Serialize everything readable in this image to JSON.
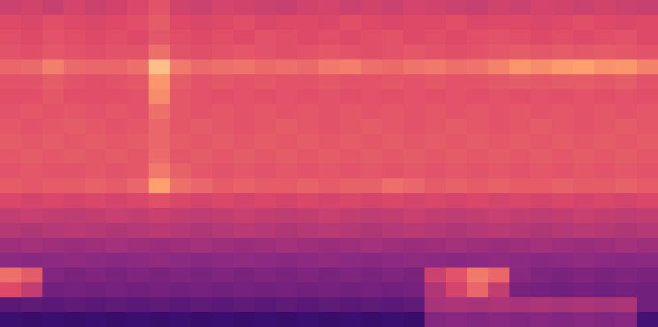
{
  "chart_data": {
    "type": "heatmap",
    "tick_labels": false,
    "color_range": [
      10,
      100
    ],
    "cells": [
      [
        60,
        61,
        59,
        62,
        60,
        61,
        63,
        66,
        61,
        60,
        62,
        61,
        60,
        59,
        61,
        62,
        60,
        61,
        60,
        62,
        61,
        60,
        59,
        61,
        60,
        62,
        61,
        60,
        61,
        60,
        59
      ],
      [
        64,
        63,
        65,
        64,
        63,
        64,
        65,
        68,
        64,
        63,
        64,
        65,
        63,
        64,
        64,
        63,
        65,
        64,
        63,
        64,
        64,
        65,
        63,
        64,
        64,
        63,
        64,
        65,
        64,
        63,
        64
      ],
      [
        65,
        64,
        66,
        65,
        64,
        65,
        64,
        67,
        65,
        64,
        65,
        64,
        66,
        65,
        64,
        65,
        64,
        65,
        66,
        64,
        65,
        64,
        65,
        66,
        65,
        64,
        65,
        64,
        65,
        66,
        64
      ],
      [
        66,
        65,
        67,
        66,
        65,
        66,
        66,
        72,
        66,
        65,
        66,
        67,
        66,
        65,
        66,
        67,
        66,
        65,
        66,
        67,
        66,
        65,
        66,
        67,
        68,
        67,
        68,
        67,
        68,
        67,
        66
      ],
      [
        70,
        71,
        75,
        71,
        70,
        70,
        72,
        88,
        74,
        71,
        72,
        73,
        71,
        72,
        71,
        74,
        75,
        72,
        71,
        73,
        74,
        72,
        73,
        76,
        80,
        78,
        81,
        82,
        79,
        80,
        76
      ],
      [
        66,
        66,
        68,
        66,
        65,
        66,
        67,
        80,
        68,
        66,
        67,
        66,
        67,
        66,
        66,
        67,
        66,
        66,
        67,
        66,
        67,
        66,
        66,
        67,
        68,
        67,
        68,
        68,
        67,
        68,
        66
      ],
      [
        65,
        65,
        67,
        65,
        65,
        65,
        66,
        78,
        67,
        66,
        65,
        66,
        65,
        66,
        65,
        66,
        65,
        66,
        65,
        66,
        65,
        66,
        65,
        66,
        65,
        66,
        65,
        66,
        65,
        66,
        65
      ],
      [
        66,
        67,
        66,
        67,
        66,
        67,
        66,
        72,
        67,
        66,
        67,
        66,
        67,
        66,
        67,
        66,
        67,
        66,
        67,
        66,
        67,
        66,
        67,
        66,
        67,
        66,
        67,
        66,
        67,
        66,
        67
      ],
      [
        67,
        66,
        67,
        68,
        67,
        66,
        67,
        70,
        67,
        68,
        67,
        66,
        67,
        68,
        67,
        66,
        67,
        68,
        67,
        66,
        67,
        68,
        67,
        66,
        67,
        68,
        67,
        66,
        67,
        68,
        67
      ],
      [
        68,
        67,
        68,
        67,
        68,
        67,
        68,
        70,
        68,
        67,
        68,
        67,
        68,
        67,
        68,
        67,
        68,
        67,
        68,
        67,
        68,
        67,
        68,
        67,
        68,
        67,
        68,
        67,
        68,
        67,
        68
      ],
      [
        67,
        68,
        67,
        68,
        67,
        68,
        67,
        71,
        67,
        68,
        67,
        68,
        67,
        68,
        67,
        68,
        67,
        68,
        67,
        68,
        67,
        68,
        67,
        68,
        67,
        68,
        67,
        68,
        67,
        68,
        67
      ],
      [
        66,
        67,
        66,
        66,
        67,
        66,
        67,
        74,
        69,
        67,
        66,
        67,
        66,
        67,
        66,
        67,
        66,
        67,
        66,
        67,
        66,
        67,
        66,
        67,
        66,
        67,
        66,
        67,
        66,
        67,
        66
      ],
      [
        68,
        67,
        68,
        68,
        69,
        68,
        70,
        82,
        72,
        70,
        68,
        69,
        68,
        68,
        69,
        68,
        69,
        69,
        72,
        70,
        68,
        69,
        68,
        69,
        68,
        68,
        69,
        68,
        68,
        69,
        68
      ],
      [
        63,
        62,
        63,
        62,
        63,
        62,
        63,
        65,
        63,
        62,
        63,
        62,
        63,
        62,
        63,
        62,
        63,
        62,
        63,
        62,
        63,
        62,
        63,
        62,
        63,
        62,
        63,
        62,
        63,
        62,
        63
      ],
      [
        58,
        59,
        58,
        57,
        58,
        59,
        58,
        59,
        58,
        57,
        58,
        59,
        58,
        57,
        58,
        59,
        58,
        57,
        58,
        59,
        58,
        57,
        58,
        59,
        58,
        57,
        58,
        59,
        58,
        57,
        58
      ],
      [
        55,
        54,
        55,
        56,
        55,
        54,
        55,
        56,
        55,
        54,
        55,
        56,
        55,
        54,
        55,
        56,
        55,
        54,
        55,
        56,
        55,
        54,
        55,
        56,
        55,
        54,
        55,
        56,
        55,
        54,
        55
      ],
      [
        50,
        51,
        50,
        49,
        50,
        51,
        50,
        49,
        50,
        51,
        50,
        49,
        50,
        51,
        50,
        49,
        50,
        51,
        50,
        49,
        50,
        51,
        50,
        49,
        50,
        51,
        50,
        49,
        50,
        51,
        50
      ],
      [
        46,
        45,
        46,
        47,
        46,
        45,
        46,
        47,
        46,
        45,
        46,
        47,
        46,
        45,
        46,
        47,
        46,
        45,
        46,
        47,
        46,
        45,
        46,
        47,
        46,
        45,
        46,
        47,
        46,
        45,
        46
      ],
      [
        72,
        68,
        44,
        42,
        43,
        42,
        43,
        42,
        43,
        42,
        43,
        42,
        43,
        42,
        43,
        42,
        43,
        42,
        43,
        42,
        60,
        66,
        74,
        70,
        45,
        43,
        42,
        43,
        42,
        43,
        42
      ],
      [
        64,
        58,
        40,
        41,
        40,
        41,
        40,
        41,
        40,
        41,
        40,
        41,
        40,
        41,
        40,
        41,
        40,
        41,
        40,
        41,
        54,
        62,
        70,
        58,
        42,
        41,
        40,
        41,
        40,
        41,
        40
      ],
      [
        35,
        36,
        35,
        36,
        35,
        36,
        35,
        36,
        35,
        36,
        35,
        36,
        35,
        36,
        35,
        36,
        35,
        36,
        35,
        36,
        52,
        53,
        52,
        53,
        52,
        53,
        52,
        53,
        52,
        53,
        40
      ],
      [
        28,
        27,
        28,
        27,
        28,
        27,
        28,
        27,
        28,
        27,
        28,
        27,
        28,
        27,
        28,
        27,
        28,
        27,
        28,
        27,
        44,
        45,
        44,
        45,
        44,
        45,
        44,
        45,
        44,
        45,
        30
      ]
    ]
  }
}
